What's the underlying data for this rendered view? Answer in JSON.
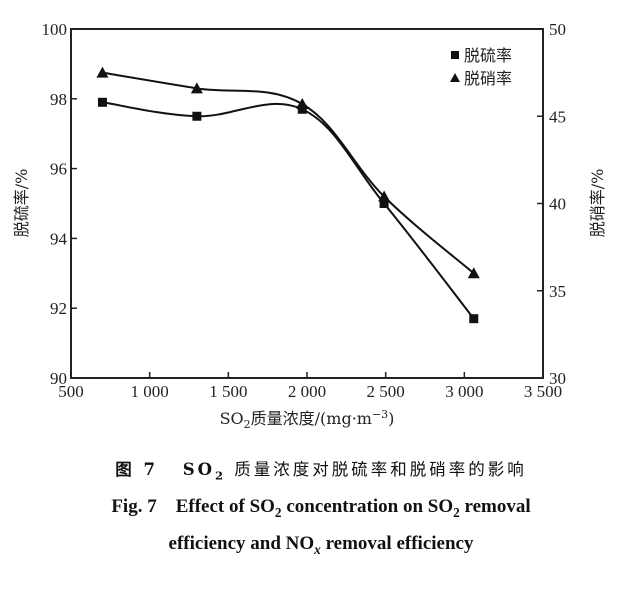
{
  "chart_data": {
    "type": "line",
    "title": "",
    "xlabel": "SO2质量浓度/(mg·m⁻³)",
    "xlabel_parts": {
      "pre": "SO",
      "sub": "2",
      "post": "质量浓度/(mg·m",
      "sup": "−3",
      "end": ")"
    },
    "ylabel": "脱硫率/%",
    "y2label": "脱硝率/%",
    "xlim": [
      500,
      3500
    ],
    "ylim": [
      90,
      100
    ],
    "y2lim": [
      30,
      50
    ],
    "xticks": [
      500,
      1000,
      1500,
      2000,
      2500,
      3000,
      3500
    ],
    "xtick_labels": [
      "500",
      "1 000",
      "1 500",
      "2 000",
      "2 500",
      "3 000",
      "3 500"
    ],
    "yticks": [
      90,
      92,
      94,
      96,
      98,
      100
    ],
    "ytick_labels": [
      "90",
      "92",
      "94",
      "96",
      "98",
      "100"
    ],
    "y2ticks": [
      30,
      35,
      40,
      45,
      50
    ],
    "y2tick_labels": [
      "30",
      "35",
      "40",
      "45",
      "50"
    ],
    "grid": false,
    "legend_position": "top-right",
    "x": [
      700,
      1300,
      1970,
      2490,
      3060
    ],
    "series": [
      {
        "name": "脱硫率",
        "axis": "left",
        "marker": "square",
        "values": [
          97.9,
          97.5,
          97.7,
          95.0,
          91.7
        ]
      },
      {
        "name": "脱硝率",
        "axis": "right",
        "marker": "triangle",
        "values": [
          47.5,
          46.6,
          45.7,
          40.4,
          36.0
        ]
      }
    ]
  },
  "caption": {
    "cn_label": "图 7",
    "cn_so": "SO",
    "cn_sub": "2",
    "cn_text": "质量浓度对脱硫率和脱硝率的影响",
    "en_label": "Fig. 7",
    "en_line1_a": "Effect of SO",
    "en_line1_sub1": "2",
    "en_line1_b": " concentration on SO",
    "en_line1_sub2": "2",
    "en_line1_c": " removal",
    "en_line2_a": "efficiency and NO",
    "en_line2_sub": "x",
    "en_line2_b": " removal efficiency"
  },
  "colors": {
    "ink": "#111111",
    "background": "#ffffff"
  }
}
